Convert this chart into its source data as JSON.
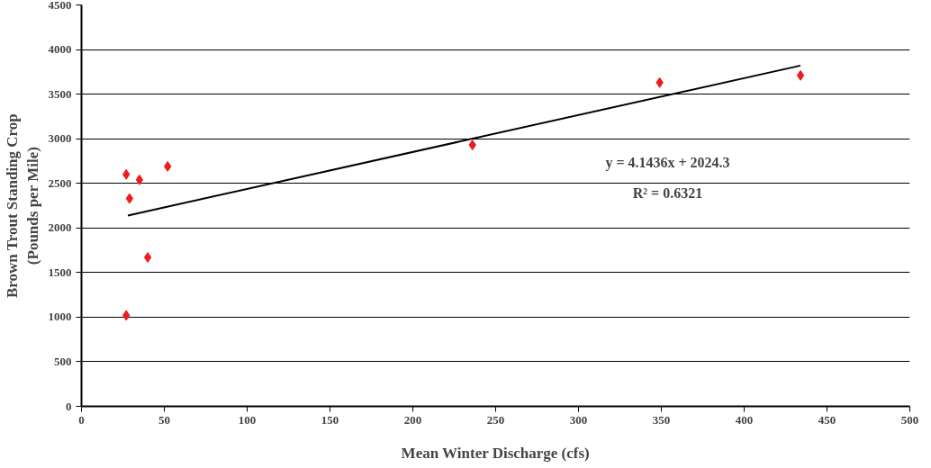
{
  "chart_data": {
    "type": "scatter",
    "xlabel": "Mean Winter Discharge (cfs)",
    "ylabel": "Brown Trout Standing Crop\n(Pounds per Mile)",
    "series": [
      {
        "color": "#ee1c1c",
        "marker": "diamond",
        "x": [
          27,
          28,
          29,
          35,
          40,
          52,
          27,
          236,
          349,
          434
        ],
        "values": [
          2600,
          null,
          2330,
          2540,
          1670,
          2690,
          1020,
          2930,
          3630,
          3710
        ]
      },
      {
        "type": "line",
        "color": "#000000",
        "marker": "none",
        "x": [
          28,
          434
        ],
        "values": [
          2140,
          3820
        ]
      }
    ],
    "annotations": [
      "y = 4.1436x + 2024.3",
      "R² = 0.6321"
    ],
    "xlim": [
      0,
      500
    ],
    "xticks": [
      0,
      50,
      100,
      150,
      200,
      250,
      300,
      350,
      400,
      450,
      500
    ],
    "ylim": [
      0,
      4500
    ],
    "yticks": [
      0,
      500,
      1000,
      1500,
      2000,
      2500,
      3000,
      3500,
      4000,
      4500
    ],
    "grid": "y"
  }
}
